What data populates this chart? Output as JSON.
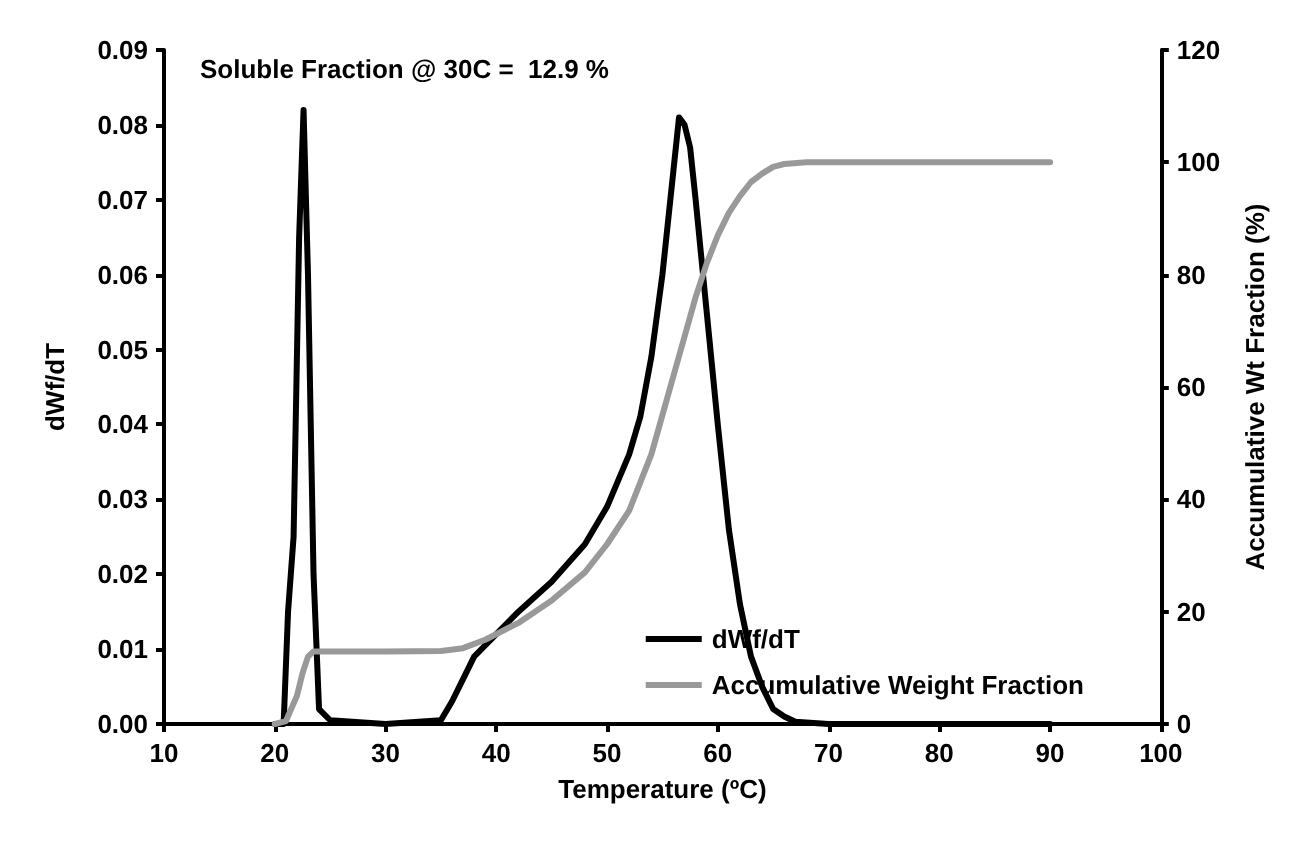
{
  "chart_data": {
    "type": "line",
    "xlabel": "Temperature (ºC)",
    "ylabel": "dWf/dT",
    "y2label": "Accumulative Wt Fraction (%)",
    "annotations": [
      "Soluble Fraction @ 30C =  12.9 %"
    ],
    "xlim": [
      10,
      100
    ],
    "xticks": [
      10,
      20,
      30,
      40,
      50,
      60,
      70,
      80,
      90,
      100
    ],
    "ylim": [
      0,
      0.09
    ],
    "yticks": [
      {
        "value": 0,
        "label": "0.00"
      },
      {
        "value": 0.01,
        "label": "0.01"
      },
      {
        "value": 0.02,
        "label": "0.02"
      },
      {
        "value": 0.03,
        "label": "0.03"
      },
      {
        "value": 0.04,
        "label": "0.04"
      },
      {
        "value": 0.05,
        "label": "0.05"
      },
      {
        "value": 0.06,
        "label": "0.06"
      },
      {
        "value": 0.07,
        "label": "0.07"
      },
      {
        "value": 0.08,
        "label": "0.08"
      },
      {
        "value": 0.09,
        "label": "0.09"
      }
    ],
    "y2lim": [
      0,
      120
    ],
    "y2ticks": [
      0,
      20,
      40,
      60,
      80,
      100,
      120
    ],
    "grid": false,
    "legend": "bottom right",
    "marker": "none",
    "line_style": "solid",
    "series": [
      {
        "name": "dWf/dT",
        "color": "#000000",
        "x": [
          20,
          20.8,
          21.2,
          21.7,
          22.2,
          22.6,
          23,
          23.5,
          24,
          25,
          30,
          35,
          36,
          37,
          38,
          40,
          42,
          45,
          48,
          50,
          52,
          53,
          54,
          55,
          56,
          56.5,
          57,
          57.5,
          58,
          59,
          60,
          61,
          62,
          63,
          64,
          65,
          66,
          67,
          70,
          80,
          90
        ],
        "values": [
          0,
          0,
          0.015,
          0.025,
          0.065,
          0.082,
          0.06,
          0.02,
          0.002,
          0.0005,
          0,
          0.0005,
          0.003,
          0.006,
          0.009,
          0.012,
          0.015,
          0.019,
          0.024,
          0.029,
          0.036,
          0.041,
          0.049,
          0.06,
          0.074,
          0.081,
          0.08,
          0.077,
          0.07,
          0.055,
          0.04,
          0.026,
          0.016,
          0.009,
          0.005,
          0.002,
          0.001,
          0.0003,
          0,
          0,
          0
        ]
      },
      {
        "name": "Accumulative Weight Fraction",
        "color": "#999999",
        "axis": "y2",
        "x": [
          20,
          21,
          22,
          22.5,
          23,
          23.5,
          25,
          30,
          35,
          37,
          39,
          42,
          45,
          48,
          50,
          52,
          54,
          55,
          56,
          57,
          58,
          59,
          60,
          61,
          62,
          63,
          64,
          65,
          66,
          68,
          70,
          80,
          90
        ],
        "values": [
          0,
          0.5,
          5,
          9,
          12,
          12.9,
          12.9,
          12.9,
          13,
          13.5,
          15,
          18,
          22,
          27,
          32,
          38,
          48,
          55,
          62,
          69,
          76,
          82,
          87,
          91,
          94,
          96.5,
          98,
          99.2,
          99.7,
          100,
          100,
          100,
          100
        ]
      }
    ]
  }
}
